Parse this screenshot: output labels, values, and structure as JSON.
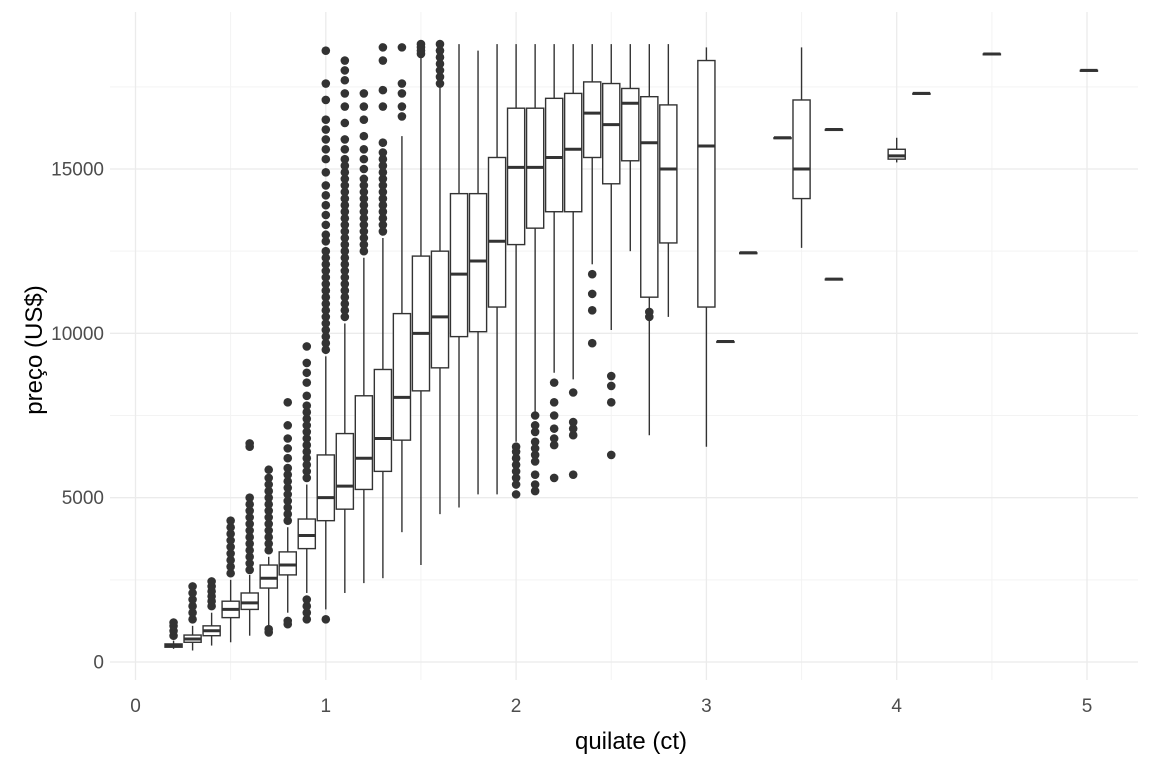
{
  "chart_data": {
    "type": "boxplot",
    "title": "",
    "xlabel": "quilate (ct)",
    "ylabel": "preço (US$)",
    "xlim": [
      0,
      5.25
    ],
    "ylim": [
      -500,
      19500
    ],
    "x_ticks": [
      0,
      1,
      2,
      3,
      4,
      5
    ],
    "x_minor_ticks": [
      0.5,
      1.5,
      2.5,
      3.5,
      4.5
    ],
    "y_ticks": [
      0,
      5000,
      10000,
      15000
    ],
    "y_minor_ticks": [
      2500,
      7500,
      12500,
      17500
    ],
    "grid": true,
    "theme": "minimal",
    "colors": {
      "box": "#333333",
      "fill": "#ffffff",
      "grid_major": "#ebebeb",
      "grid_minor": "#f3f3f3"
    },
    "boxes": [
      {
        "x": 0.2,
        "min": 400,
        "q1": 450,
        "median": 500,
        "q3": 550,
        "max": 650,
        "outliers": [
          800,
          950,
          1100,
          1200
        ]
      },
      {
        "x": 0.3,
        "min": 350,
        "q1": 600,
        "median": 700,
        "q3": 820,
        "max": 1100,
        "outliers": [
          1300,
          1500,
          1700,
          1900,
          2100,
          2300
        ]
      },
      {
        "x": 0.4,
        "min": 500,
        "q1": 800,
        "median": 950,
        "q3": 1100,
        "max": 1500,
        "outliers": [
          1700,
          1850,
          2000,
          2150,
          2300,
          2450
        ]
      },
      {
        "x": 0.5,
        "min": 600,
        "q1": 1350,
        "median": 1600,
        "q3": 1850,
        "max": 2500,
        "outliers": [
          2700,
          2900,
          3100,
          3300,
          3500,
          3700,
          3900,
          4100,
          4300
        ]
      },
      {
        "x": 0.6,
        "min": 800,
        "q1": 1600,
        "median": 1800,
        "q3": 2100,
        "max": 2650,
        "outliers": [
          2800,
          3000,
          3200,
          3400,
          3600,
          3800,
          4000,
          4200,
          4400,
          4600,
          4800,
          5000,
          6550,
          6650
        ]
      },
      {
        "x": 0.7,
        "min": 1000,
        "q1": 2250,
        "median": 2550,
        "q3": 2950,
        "max": 3200,
        "outliers": [
          900,
          1000,
          3400,
          3600,
          3800,
          4000,
          4200,
          4400,
          4600,
          4800,
          5000,
          5200,
          5400,
          5600,
          5850
        ]
      },
      {
        "x": 0.8,
        "min": 1500,
        "q1": 2650,
        "median": 2950,
        "q3": 3350,
        "max": 4100,
        "outliers": [
          1150,
          1250,
          4300,
          4500,
          4700,
          4900,
          5100,
          5300,
          5500,
          5700,
          5900,
          6200,
          6500,
          6800,
          7200,
          7900
        ]
      },
      {
        "x": 0.9,
        "min": 2100,
        "q1": 3450,
        "median": 3850,
        "q3": 4350,
        "max": 5400,
        "outliers": [
          1300,
          1500,
          1700,
          1900,
          5600,
          5800,
          6000,
          6200,
          6400,
          6600,
          6800,
          7000,
          7200,
          7400,
          7600,
          7800,
          8100,
          8500,
          8800,
          9100,
          9600
        ]
      },
      {
        "x": 1.0,
        "min": 1600,
        "q1": 4300,
        "median": 5000,
        "q3": 6300,
        "max": 9300,
        "outliers": [
          1300,
          9500,
          9700,
          9900,
          10100,
          10300,
          10500,
          10700,
          10900,
          11100,
          11300,
          11500,
          11700,
          11900,
          12100,
          12300,
          12500,
          12800,
          13000,
          13300,
          13600,
          13900,
          14200,
          14500,
          14900,
          15300,
          15600,
          15900,
          16200,
          16500,
          17100,
          17600,
          18600
        ]
      },
      {
        "x": 1.1,
        "min": 2100,
        "q1": 4650,
        "median": 5350,
        "q3": 6950,
        "max": 10300,
        "outliers": [
          10500,
          10700,
          10900,
          11100,
          11300,
          11500,
          11700,
          11900,
          12100,
          12300,
          12500,
          12700,
          12900,
          13100,
          13300,
          13500,
          13700,
          13900,
          14100,
          14300,
          14500,
          14700,
          14900,
          15100,
          15300,
          15600,
          15900,
          16400,
          16900,
          17300,
          17700,
          18000,
          18300
        ]
      },
      {
        "x": 1.2,
        "min": 2400,
        "q1": 5250,
        "median": 6200,
        "q3": 8100,
        "max": 12300,
        "outliers": [
          12500,
          12700,
          12900,
          13100,
          13300,
          13500,
          13700,
          13900,
          14100,
          14300,
          14500,
          14700,
          15000,
          15300,
          15600,
          16000,
          16500,
          16900,
          17300
        ]
      },
      {
        "x": 1.3,
        "min": 2550,
        "q1": 5800,
        "median": 6800,
        "q3": 8900,
        "max": 12900,
        "outliers": [
          13100,
          13300,
          13500,
          13700,
          13900,
          14100,
          14300,
          14500,
          14700,
          14900,
          15100,
          15300,
          15500,
          15800,
          16900,
          17400,
          18300,
          18700
        ]
      },
      {
        "x": 1.4,
        "min": 3950,
        "q1": 6750,
        "median": 8050,
        "q3": 10600,
        "max": 16000,
        "outliers": [
          16600,
          16900,
          17300,
          17600,
          18700
        ]
      },
      {
        "x": 1.5,
        "min": 2950,
        "q1": 8250,
        "median": 10000,
        "q3": 12350,
        "max": 18400,
        "outliers": [
          18500,
          18600,
          18700,
          18800
        ]
      },
      {
        "x": 1.6,
        "min": 4500,
        "q1": 8950,
        "median": 10500,
        "q3": 12500,
        "max": 18200,
        "outliers": [
          17600,
          17800,
          18000,
          18200,
          18400,
          18600,
          18800
        ]
      },
      {
        "x": 1.7,
        "min": 4700,
        "q1": 9900,
        "median": 11800,
        "q3": 14250,
        "max": 18800,
        "outliers": []
      },
      {
        "x": 1.8,
        "min": 5100,
        "q1": 10050,
        "median": 12200,
        "q3": 14250,
        "max": 18600,
        "outliers": []
      },
      {
        "x": 1.9,
        "min": 5100,
        "q1": 10800,
        "median": 12800,
        "q3": 15350,
        "max": 18800,
        "outliers": []
      },
      {
        "x": 2.0,
        "min": 6700,
        "q1": 12700,
        "median": 15050,
        "q3": 16850,
        "max": 18800,
        "outliers": [
          5100,
          5400,
          5600,
          5800,
          6000,
          6200,
          6400,
          6550
        ]
      },
      {
        "x": 2.1,
        "min": 7600,
        "q1": 13200,
        "median": 15050,
        "q3": 16850,
        "max": 18800,
        "outliers": [
          5200,
          5400,
          5700,
          6100,
          6300,
          6500,
          6700,
          7000,
          7200,
          7500
        ]
      },
      {
        "x": 2.2,
        "min": 8800,
        "q1": 13700,
        "median": 15350,
        "q3": 17150,
        "max": 18800,
        "outliers": [
          5600,
          6600,
          6800,
          7100,
          7500,
          7900,
          8500
        ]
      },
      {
        "x": 2.3,
        "min": 8600,
        "q1": 13700,
        "median": 15600,
        "q3": 17300,
        "max": 18800,
        "outliers": [
          5700,
          6900,
          7100,
          7300,
          8200
        ]
      },
      {
        "x": 2.4,
        "min": 12100,
        "q1": 15350,
        "median": 16700,
        "q3": 17650,
        "max": 18800,
        "outliers": [
          9700,
          10700,
          11200,
          11800
        ]
      },
      {
        "x": 2.5,
        "min": 10100,
        "q1": 14550,
        "median": 16350,
        "q3": 17600,
        "max": 18800,
        "outliers": [
          6300,
          7900,
          8400,
          8700
        ]
      },
      {
        "x": 2.6,
        "min": 12500,
        "q1": 15250,
        "median": 17000,
        "q3": 17450,
        "max": 18800,
        "outliers": []
      },
      {
        "x": 2.7,
        "min": 6900,
        "q1": 11100,
        "median": 15800,
        "q3": 17200,
        "max": 18800,
        "outliers": [
          10500,
          10650
        ]
      },
      {
        "x": 2.8,
        "min": 10500,
        "q1": 12750,
        "median": 15000,
        "q3": 16950,
        "max": 18800,
        "outliers": []
      },
      {
        "x": 3.0,
        "min": 6550,
        "q1": 10800,
        "median": 15700,
        "q3": 18300,
        "max": 18700,
        "outliers": []
      },
      {
        "x": 3.1,
        "min": 9750,
        "q1": 9750,
        "median": 9750,
        "q3": 9750,
        "max": 9750,
        "outliers": []
      },
      {
        "x": 3.22,
        "min": 12450,
        "q1": 12450,
        "median": 12450,
        "q3": 12450,
        "max": 12450,
        "outliers": []
      },
      {
        "x": 3.4,
        "min": 15950,
        "q1": 15950,
        "median": 15950,
        "q3": 15950,
        "max": 15950,
        "outliers": []
      },
      {
        "x": 3.5,
        "min": 12600,
        "q1": 14100,
        "median": 15000,
        "q3": 17100,
        "max": 18700,
        "outliers": []
      },
      {
        "x": 3.67,
        "min": 11650,
        "q1": 11650,
        "median": 11650,
        "q3": 11650,
        "max": 11650,
        "outliers": []
      },
      {
        "x": 3.67,
        "min": 16200,
        "q1": 16200,
        "median": 16200,
        "q3": 16200,
        "max": 16200,
        "outliers": []
      },
      {
        "x": 4.0,
        "min": 15200,
        "q1": 15300,
        "median": 15400,
        "q3": 15600,
        "max": 15950,
        "outliers": []
      },
      {
        "x": 4.13,
        "min": 17300,
        "q1": 17300,
        "median": 17300,
        "q3": 17300,
        "max": 17300,
        "outliers": []
      },
      {
        "x": 4.5,
        "min": 18500,
        "q1": 18500,
        "median": 18500,
        "q3": 18500,
        "max": 18500,
        "outliers": []
      },
      {
        "x": 5.01,
        "min": 18000,
        "q1": 18000,
        "median": 18000,
        "q3": 18000,
        "max": 18000,
        "outliers": []
      }
    ]
  }
}
